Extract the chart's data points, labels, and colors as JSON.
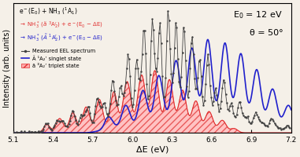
{
  "xlim": [
    5.1,
    7.2
  ],
  "ylim": [
    0,
    1.0
  ],
  "xlabel": "ΔE (eV)",
  "ylabel": "Intensity (arb. units)",
  "E0_label": "E$_0$ = 12 eV",
  "theta_label": "θ = 50°",
  "bg_color": "#f5f0e8",
  "text_line1": "e⁻(E₀) + NH₃ (¹A₁)",
  "legend_measured": "Measured EEL spectrum",
  "legend_singlet": "Ã ¹A₂’ singlet state",
  "legend_triplet": "ã ³A₂’ triplet state",
  "triplet_color": "#e03030",
  "singlet_color": "#2020cc",
  "measured_color": "#404040"
}
